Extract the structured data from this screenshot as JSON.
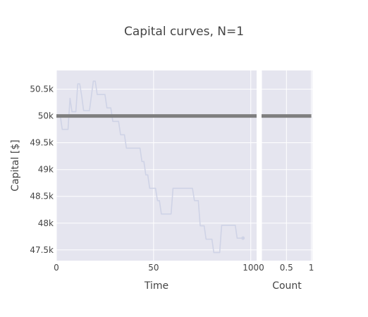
{
  "chart_data": [
    {
      "type": "line",
      "title": "Capital curves, N=1",
      "xlabel": "Time",
      "ylabel": "Capital [$]",
      "xlim": [
        0,
        103
      ],
      "ylim": [
        47300,
        50850
      ],
      "x_ticks": [
        0,
        50,
        100
      ],
      "x_tick_labels": [
        "0",
        "50",
        "100"
      ],
      "y_ticks": [
        47500,
        48000,
        48500,
        49000,
        49500,
        50000,
        50500
      ],
      "y_tick_labels": [
        "47.5k",
        "48k",
        "48.5k",
        "49k",
        "49.5k",
        "50k",
        "50.5k"
      ],
      "grid": true,
      "series": [
        {
          "role": "capital-curve",
          "color": "#cfd3e6",
          "points": [
            [
              0,
              50000
            ],
            [
              2,
              50000
            ],
            [
              3,
              49750
            ],
            [
              6,
              49750
            ],
            [
              7,
              50330
            ],
            [
              8,
              50080
            ],
            [
              10,
              50080
            ],
            [
              11,
              50600
            ],
            [
              12,
              50600
            ],
            [
              13,
              50380
            ],
            [
              14,
              50100
            ],
            [
              17,
              50100
            ],
            [
              19,
              50650
            ],
            [
              20,
              50650
            ],
            [
              21,
              50400
            ],
            [
              25,
              50400
            ],
            [
              26,
              50150
            ],
            [
              28,
              50150
            ],
            [
              29,
              49900
            ],
            [
              32,
              49900
            ],
            [
              33,
              49650
            ],
            [
              35,
              49650
            ],
            [
              36,
              49400
            ],
            [
              43,
              49400
            ],
            [
              44,
              49150
            ],
            [
              45,
              49150
            ],
            [
              46,
              48900
            ],
            [
              47,
              48900
            ],
            [
              48,
              48650
            ],
            [
              51,
              48650
            ],
            [
              52,
              48420
            ],
            [
              53,
              48420
            ],
            [
              54,
              48170
            ],
            [
              59,
              48170
            ],
            [
              60,
              48650
            ],
            [
              70,
              48650
            ],
            [
              71,
              48420
            ],
            [
              73,
              48420
            ],
            [
              74,
              47950
            ],
            [
              76,
              47950
            ],
            [
              77,
              47700
            ],
            [
              80,
              47700
            ],
            [
              81,
              47450
            ],
            [
              84,
              47450
            ],
            [
              85,
              47960
            ],
            [
              92,
              47960
            ],
            [
              93,
              47720
            ],
            [
              96,
              47720
            ]
          ]
        },
        {
          "role": "initial-capital",
          "color": "#7f7f7f",
          "points": [
            [
              0,
              50000
            ],
            [
              103,
              50000
            ]
          ]
        }
      ]
    },
    {
      "type": "histogram",
      "xlabel": "Count",
      "xlim": [
        0,
        1.02
      ],
      "x_ticks": [
        0,
        0.5,
        1
      ],
      "x_tick_labels": [
        "0",
        "0.5",
        "1"
      ],
      "shared_y": true,
      "grid": true,
      "bins": [
        {
          "value": 50000,
          "count": 1,
          "color": "#7f7f7f"
        }
      ]
    }
  ]
}
